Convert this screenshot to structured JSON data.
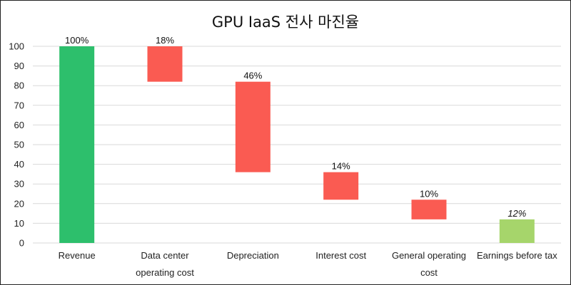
{
  "chart_data": {
    "type": "bar",
    "subtype": "waterfall",
    "title": "GPU IaaS 전사 마진율",
    "xlabel": "",
    "ylabel": "",
    "ylim": [
      0,
      100
    ],
    "yticks": [
      0,
      10,
      20,
      30,
      40,
      50,
      60,
      70,
      80,
      90,
      100
    ],
    "grid": true,
    "legend": "none",
    "categories": [
      "Revenue",
      "Data center operating cost",
      "Depreciation",
      "Interest cost",
      "General operating cost",
      "Earnings before tax"
    ],
    "category_lines": [
      [
        "Revenue"
      ],
      [
        "Data center",
        "operating cost"
      ],
      [
        "Depreciation"
      ],
      [
        "Interest cost"
      ],
      [
        "General operating",
        "cost"
      ],
      [
        "Earnings before tax"
      ]
    ],
    "bars": [
      {
        "start": 0,
        "end": 100,
        "label": "100%",
        "kind": "total"
      },
      {
        "start": 82,
        "end": 100,
        "label": "18%",
        "kind": "decrease"
      },
      {
        "start": 36,
        "end": 82,
        "label": "46%",
        "kind": "decrease"
      },
      {
        "start": 22,
        "end": 36,
        "label": "14%",
        "kind": "decrease"
      },
      {
        "start": 12,
        "end": 22,
        "label": "10%",
        "kind": "decrease"
      },
      {
        "start": 0,
        "end": 12,
        "label": "12%",
        "kind": "result"
      }
    ],
    "colors": {
      "total": "#2dbf6c",
      "decrease": "#fa5b52",
      "result": "#a6d56b",
      "grid": "#d9d9d9"
    }
  }
}
